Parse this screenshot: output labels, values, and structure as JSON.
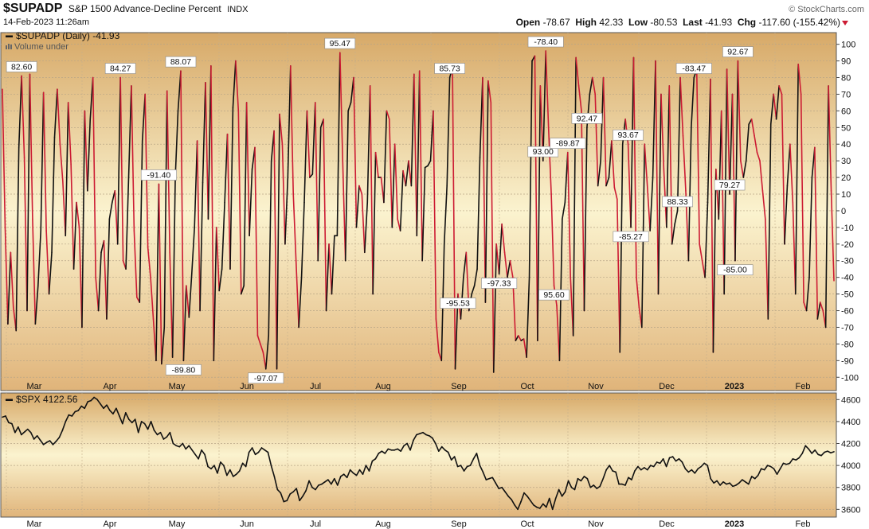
{
  "header": {
    "symbol": "$SUPADP",
    "description": "S&P 1500 Advance-Decline Percent",
    "exchange": "INDX",
    "datetime": "14-Feb-2023 11:26am",
    "brand": "© StockCharts.com",
    "open_label": "Open",
    "open_value": "-78.67",
    "high_label": "High",
    "high_value": "42.33",
    "low_label": "Low",
    "low_value": "-80.53",
    "last_label": "Last",
    "last_value": "-41.93",
    "chg_label": "Chg",
    "chg_value": "-117.60 (-155.42%)"
  },
  "colors": {
    "up": "#111111",
    "down": "#cc1b33",
    "spx": "#111111",
    "bg_top": "#d7a968",
    "bg_mid": "#fbf3cf",
    "bg_bottom": "#e0b47a"
  },
  "chart_data": [
    {
      "type": "line",
      "legend_symbol": "$SUPADP (Daily) -41.93",
      "legend_volume": "Volume under",
      "ylim": [
        -108,
        107
      ],
      "y_ticks": [
        -100,
        -90,
        -80,
        -70,
        -60,
        -50,
        -40,
        -30,
        -20,
        -10,
        0,
        10,
        20,
        30,
        40,
        50,
        60,
        70,
        80,
        90,
        100
      ],
      "x_tick_labels": [
        "Mar",
        "Apr",
        "May",
        "Jun",
        "Jul",
        "Aug",
        "Sep",
        "Oct",
        "Nov",
        "Dec",
        "2023",
        "Feb"
      ],
      "values": [
        73,
        -10,
        -68,
        -25,
        -58,
        -72,
        38,
        81,
        32,
        -60,
        82,
        -5,
        -68,
        -45,
        -12,
        71,
        -12,
        -50,
        -25,
        44,
        73,
        40,
        18,
        -15,
        65,
        28,
        -35,
        5,
        -10,
        -70,
        60,
        12,
        55,
        80,
        -40,
        -60,
        -25,
        -18,
        -65,
        -5,
        5,
        12,
        -20,
        80,
        -30,
        -35,
        20,
        75,
        -12,
        -52,
        -55,
        42,
        70,
        -22,
        -40,
        -65,
        -90,
        16,
        -92,
        -70,
        72,
        -25,
        -88,
        20,
        60,
        84,
        -90,
        -45,
        -64,
        -38,
        -10,
        42,
        -60,
        17,
        77,
        -5,
        87,
        -90,
        -10,
        -48,
        -35,
        5,
        46,
        -35,
        62,
        90,
        60,
        -50,
        -45,
        65,
        -15,
        25,
        38,
        -75,
        -80,
        -85,
        -95,
        -75,
        30,
        48,
        -95,
        58,
        40,
        -20,
        20,
        87,
        10,
        -30,
        -70,
        -40,
        5,
        60,
        20,
        22,
        65,
        -30,
        50,
        55,
        -60,
        -20,
        -50,
        -15,
        -15,
        95,
        30,
        -30,
        60,
        65,
        80,
        -10,
        15,
        10,
        -25,
        5,
        75,
        -50,
        35,
        20,
        20,
        5,
        60,
        55,
        -10,
        40,
        -5,
        -12,
        24,
        15,
        30,
        15,
        82,
        -15,
        84,
        -30,
        26,
        27,
        30,
        60,
        -65,
        -85,
        -90,
        -20,
        15,
        80,
        86,
        -95,
        -50,
        -65,
        -40,
        -25,
        -60,
        -50,
        -45,
        -35,
        32,
        80,
        -55,
        78,
        65,
        -97,
        -20,
        -38,
        -8,
        -25,
        -40,
        -30,
        -40,
        -78,
        -75,
        -78,
        -77,
        -88,
        -40,
        90,
        93,
        -78,
        75,
        30,
        96,
        50,
        10,
        -45,
        -57,
        -90,
        -5,
        5,
        35,
        -40,
        -75,
        92,
        75,
        60,
        -60,
        50,
        70,
        80,
        70,
        15,
        30,
        80,
        15,
        20,
        42,
        14,
        7,
        -85,
        40,
        55,
        40,
        -10,
        92,
        -40,
        -58,
        -70,
        40,
        15,
        -12,
        20,
        90,
        -50,
        70,
        25,
        -10,
        75,
        -20,
        -8,
        0,
        80,
        45,
        12,
        -30,
        50,
        80,
        85,
        -20,
        -30,
        -40,
        5,
        79,
        -85,
        25,
        -5,
        60,
        -50,
        85,
        10,
        70,
        -30,
        90,
        30,
        20,
        30,
        52,
        55,
        45,
        35,
        30,
        12,
        -5,
        -65,
        52,
        70,
        55,
        75,
        70,
        -20,
        15,
        40,
        5,
        -50,
        88,
        70,
        -55,
        -60,
        -40,
        20,
        38,
        -65,
        -55,
        -60,
        -70,
        75,
        12,
        -42
      ]
    },
    {
      "type": "line",
      "legend_symbol": "$SPX 4122.56",
      "ylim": [
        3530,
        4660
      ],
      "y_ticks": [
        3600,
        3800,
        4000,
        4200,
        4400,
        4600
      ],
      "x_tick_labels": [
        "Mar",
        "Apr",
        "May",
        "Jun",
        "Jul",
        "Aug",
        "Sep",
        "Oct",
        "Nov",
        "Dec",
        "2023",
        "Feb"
      ],
      "values": [
        4440,
        4450,
        4390,
        4380,
        4300,
        4350,
        4280,
        4305,
        4330,
        4300,
        4240,
        4270,
        4230,
        4190,
        4210,
        4225,
        4190,
        4220,
        4255,
        4320,
        4400,
        4460,
        4450,
        4490,
        4500,
        4540,
        4520,
        4580,
        4590,
        4620,
        4600,
        4560,
        4520,
        4550,
        4500,
        4470,
        4520,
        4450,
        4380,
        4480,
        4420,
        4390,
        4420,
        4300,
        4400,
        4380,
        4330,
        4400,
        4320,
        4280,
        4300,
        4240,
        4260,
        4300,
        4200,
        4180,
        4170,
        4200,
        4150,
        4180,
        4140,
        4100,
        4060,
        4140,
        4100,
        3990,
        3970,
        4000,
        3930,
        4030,
        4000,
        3910,
        3960,
        3900,
        3920,
        3950,
        4020,
        3990,
        4120,
        4160,
        4100,
        4120,
        4160,
        4140,
        4120,
        4000,
        3900,
        3780,
        3750,
        3670,
        3680,
        3740,
        3760,
        3790,
        3680,
        3720,
        3770,
        3860,
        3800,
        3780,
        3820,
        3830,
        3850,
        3870,
        3830,
        3880,
        3820,
        3900,
        3920,
        3890,
        3960,
        3930,
        3910,
        3960,
        3920,
        4000,
        3950,
        4040,
        4060,
        4110,
        4130,
        4110,
        4150,
        4140,
        4140,
        4150,
        4130,
        4180,
        4200,
        4140,
        4230,
        4280,
        4290,
        4300,
        4280,
        4270,
        4250,
        4200,
        4130,
        4170,
        4140,
        4120,
        4050,
        4080,
        3990,
        4000,
        3950,
        3990,
        4000,
        4060,
        4110,
        4000,
        3940,
        3870,
        3880,
        3890,
        3840,
        3790,
        3800,
        3760,
        3720,
        3690,
        3640,
        3600,
        3670,
        3750,
        3720,
        3680,
        3640,
        3620,
        3610,
        3650,
        3620,
        3700,
        3600,
        3700,
        3780,
        3720,
        3760,
        3860,
        3800,
        3780,
        3880,
        3860,
        3900,
        3880,
        3800,
        3820,
        3790,
        3810,
        3880,
        3960,
        4000,
        3950,
        3940,
        3830,
        3830,
        3820,
        3890,
        3870,
        3950,
        3990,
        3960,
        3980,
        3960,
        4000,
        3990,
        4030,
        4020,
        4060,
        3990,
        4070,
        4080,
        4040,
        4060,
        4030,
        3970,
        3940,
        3960,
        3930,
        3970,
        3990,
        4020,
        4000,
        3880,
        3840,
        3860,
        3820,
        3850,
        3830,
        3840,
        3810,
        3820,
        3840,
        3870,
        3850,
        3830,
        3900,
        3880,
        3910,
        3970,
        3960,
        4000,
        3990,
        3970,
        3920,
        3970,
        4020,
        4010,
        4020,
        4060,
        4050,
        4070,
        4110,
        4180,
        4150,
        4110,
        4140,
        4100,
        4090,
        4120,
        4130,
        4115,
        4125
      ]
    }
  ],
  "peak_labels": [
    {
      "idx": 7,
      "text": "82.60"
    },
    {
      "idx": 43,
      "text": "84.27"
    },
    {
      "idx": 57,
      "text": "-91.40"
    },
    {
      "idx": 65,
      "text": "88.07"
    },
    {
      "idx": 66,
      "text": "-89.80"
    },
    {
      "idx": 96,
      "text": "-97.07"
    },
    {
      "idx": 123,
      "text": "95.47"
    },
    {
      "idx": 163,
      "text": "85.73"
    },
    {
      "idx": 166,
      "text": "-95.53"
    },
    {
      "idx": 181,
      "text": "-97.33"
    },
    {
      "idx": 197,
      "text": "93.00"
    },
    {
      "idx": 198,
      "text": "-78.40"
    },
    {
      "idx": 201,
      "text": "95.60"
    },
    {
      "idx": 206,
      "text": "-89.87"
    },
    {
      "idx": 213,
      "text": "92.47"
    },
    {
      "idx": 228,
      "text": "93.67"
    },
    {
      "idx": 229,
      "text": "-85.27"
    },
    {
      "idx": 246,
      "text": "88.33"
    },
    {
      "idx": 252,
      "text": "-83.47"
    },
    {
      "idx": 265,
      "text": "79.27"
    },
    {
      "idx": 267,
      "text": "-85.00"
    },
    {
      "idx": 268,
      "text": "92.67"
    }
  ]
}
